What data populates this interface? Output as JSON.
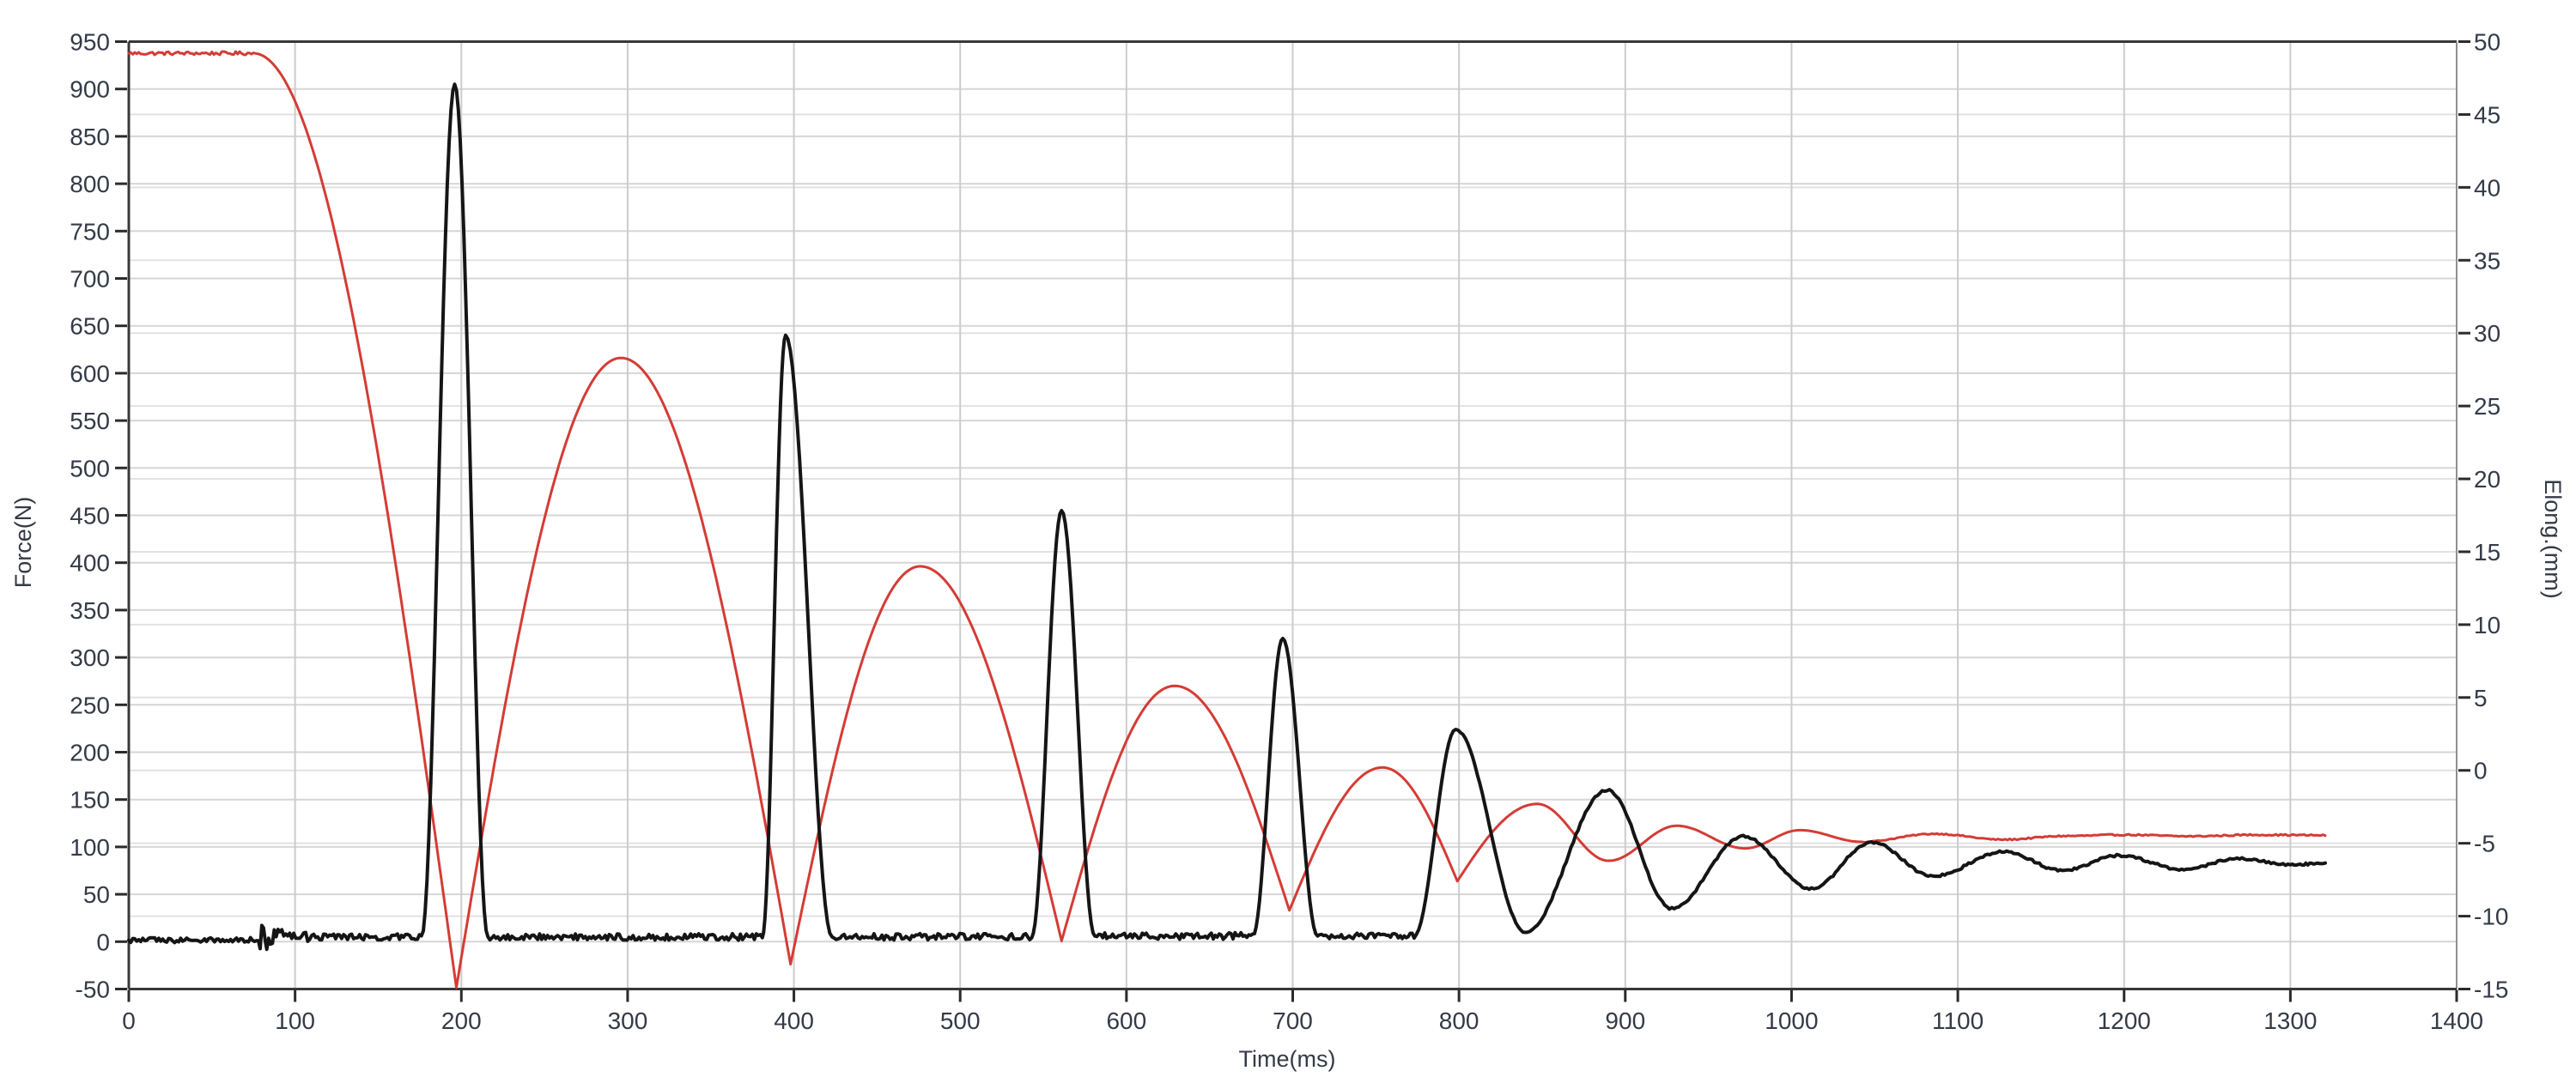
{
  "chart_data": {
    "type": "line",
    "title": "",
    "x": {
      "label": "Time(ms)",
      "min": 0,
      "max": 1400,
      "ticks": [
        0,
        100,
        200,
        300,
        400,
        500,
        600,
        700,
        800,
        900,
        1000,
        1100,
        1200,
        1300,
        1400
      ]
    },
    "y_left": {
      "label": "Force(N)",
      "min": -50,
      "max": 950,
      "ticks": [
        950,
        900,
        850,
        800,
        750,
        700,
        650,
        600,
        550,
        500,
        450,
        400,
        350,
        300,
        250,
        200,
        150,
        100,
        50,
        0,
        -50
      ]
    },
    "y_right": {
      "label": "Elong.(mm)",
      "min": -15,
      "max": 50,
      "ticks": [
        50,
        45,
        40,
        35,
        30,
        25,
        20,
        15,
        10,
        5,
        0,
        -5,
        -10,
        -15
      ]
    },
    "grid": {
      "on": true,
      "vertical_color": "#cccccc",
      "left_color": "#d6d6d6",
      "right_color": "#e2e2e2"
    },
    "frame": {
      "dark_color": "#383838",
      "right_color": "#909090",
      "tick_color": "#2b2b2b",
      "label_color": "#343b47"
    },
    "legend": {
      "visible": false
    },
    "series": [
      {
        "name": "Elongation",
        "axis": "right",
        "color": "#d43c35",
        "width": 3,
        "points": [
          [
            0,
            49.2
          ],
          [
            75,
            49.2,
            "noise",
            0.12
          ],
          [
            197,
            -14.9,
            "in",
            0
          ],
          [
            296,
            28.3,
            "out",
            0
          ],
          [
            398,
            -13.3,
            "in",
            0
          ],
          [
            476,
            14.0,
            "out",
            0
          ],
          [
            561,
            -11.7,
            "in",
            0
          ],
          [
            629,
            5.8,
            "out",
            0
          ],
          [
            698,
            -9.6,
            "in",
            0
          ],
          [
            754,
            0.2,
            "out",
            0
          ],
          [
            799,
            -7.6,
            "in",
            0
          ],
          [
            847,
            -2.3,
            "out",
            0
          ],
          [
            890,
            -6.2,
            "inout",
            0
          ],
          [
            931,
            -3.8,
            "inout",
            0
          ],
          [
            972,
            -5.35,
            "inout",
            0
          ],
          [
            1005,
            -4.1,
            "inout",
            0
          ],
          [
            1042,
            -4.9,
            "inout",
            0
          ],
          [
            1086,
            -4.35,
            "inout",
            0.04
          ],
          [
            1127,
            -4.75,
            "inout",
            0.04
          ],
          [
            1165,
            -4.5,
            "inout",
            0.05
          ],
          [
            1200,
            -4.42,
            "inout",
            0.05
          ],
          [
            1240,
            -4.52,
            "inout",
            0.05
          ],
          [
            1280,
            -4.42,
            "inout",
            0.05
          ],
          [
            1321,
            -4.45,
            "inout",
            0.05
          ]
        ]
      },
      {
        "name": "Force",
        "axis": "left",
        "color": "#151515",
        "width": 4,
        "points": [
          [
            0,
            1.5
          ],
          [
            78,
            2,
            "noise",
            2.8
          ],
          [
            83,
            5,
            "noise",
            14
          ],
          [
            92,
            5,
            "noise",
            8
          ],
          [
            110,
            5,
            "noise",
            5
          ],
          [
            176,
            4.5,
            "noise",
            3.5
          ],
          [
            196,
            905,
            "inout",
            0
          ],
          [
            216,
            5,
            "inout",
            0
          ],
          [
            381,
            5,
            "noise",
            3.5
          ],
          [
            395,
            640,
            "inout",
            0
          ],
          [
            423,
            5,
            "inout",
            0
          ],
          [
            543,
            5.5,
            "noise",
            3.5
          ],
          [
            561,
            455,
            "inout",
            0
          ],
          [
            581,
            6,
            "inout",
            0
          ],
          [
            676,
            6,
            "noise",
            3.5
          ],
          [
            694,
            320,
            "inout",
            0
          ],
          [
            715,
            6,
            "inout",
            0
          ],
          [
            773,
            6,
            "noise",
            3
          ],
          [
            798,
            224,
            "inout",
            0
          ],
          [
            840,
            10,
            "inout",
            1
          ],
          [
            889,
            160,
            "inout",
            1.2
          ],
          [
            928,
            35,
            "inout",
            1.2
          ],
          [
            971,
            111,
            "inout",
            1.2
          ],
          [
            1012,
            56,
            "inout",
            1.2
          ],
          [
            1048,
            105,
            "inout",
            1.2
          ],
          [
            1085,
            69,
            "inout",
            1.2
          ],
          [
            1128,
            95,
            "inout",
            1.2
          ],
          [
            1163,
            75,
            "inout",
            1.2
          ],
          [
            1197,
            91,
            "inout",
            1.2
          ],
          [
            1236,
            76,
            "inout",
            1.2
          ],
          [
            1268,
            88,
            "inout",
            1.2
          ],
          [
            1300,
            81,
            "inout",
            1.2
          ],
          [
            1321,
            83,
            "inout",
            1.2
          ]
        ]
      }
    ]
  }
}
